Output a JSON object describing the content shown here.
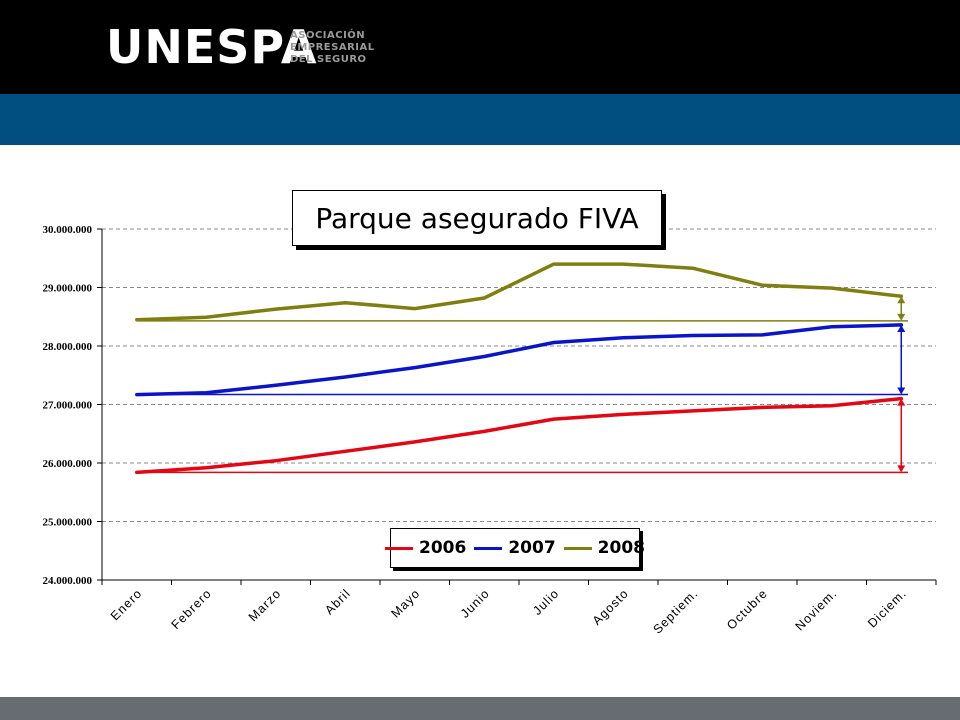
{
  "header": {
    "logo_text": "UNESPA",
    "logo_subtitle": [
      "ASOCIACIÓN",
      "EMPRESARIAL",
      "DEL SEGURO"
    ]
  },
  "colors": {
    "header_black": "#000000",
    "header_blue": "#004f80",
    "footer_gray": "#676c72",
    "series_2006": "#e30613",
    "series_2007": "#0a14c8",
    "series_2008": "#7f7f10"
  },
  "chart_data": {
    "type": "line",
    "title": "Parque asegurado FIVA",
    "xlabel": "",
    "ylabel": "",
    "categories": [
      "Enero",
      "Febrero",
      "Marzo",
      "Abril",
      "Mayo",
      "Junio",
      "Julio",
      "Agosto",
      "Septiem.",
      "Octubre",
      "Noviem.",
      "Diciem."
    ],
    "ylim": [
      24000000,
      30000000
    ],
    "yticks": [
      24000000,
      25000000,
      26000000,
      27000000,
      28000000,
      29000000,
      30000000
    ],
    "ytick_labels": [
      "24.000.000",
      "25.000.000",
      "26.000.000",
      "27.000.000",
      "28.000.000",
      "29.000.000",
      "30.000.000"
    ],
    "grid": "horizontal dashed",
    "legend_position": "bottom-center",
    "series": [
      {
        "name": "2006",
        "color": "#e30613",
        "values": [
          25840000,
          25920000,
          26040000,
          26200000,
          26360000,
          26540000,
          26750000,
          26830000,
          26890000,
          26950000,
          26980000,
          27100000
        ]
      },
      {
        "name": "2007",
        "color": "#0a14c8",
        "values": [
          27170000,
          27200000,
          27330000,
          27470000,
          27630000,
          27820000,
          28060000,
          28140000,
          28180000,
          28190000,
          28330000,
          28360000
        ]
      },
      {
        "name": "2008",
        "color": "#7f7f10",
        "values": [
          28450000,
          28490000,
          28630000,
          28740000,
          28640000,
          28820000,
          29400000,
          29400000,
          29330000,
          29040000,
          28990000,
          28850000
        ]
      }
    ],
    "reference_lines": [
      {
        "series": "2006",
        "value": 25840000
      },
      {
        "series": "2007",
        "value": 27170000
      },
      {
        "series": "2008",
        "value": 28430000
      }
    ]
  }
}
